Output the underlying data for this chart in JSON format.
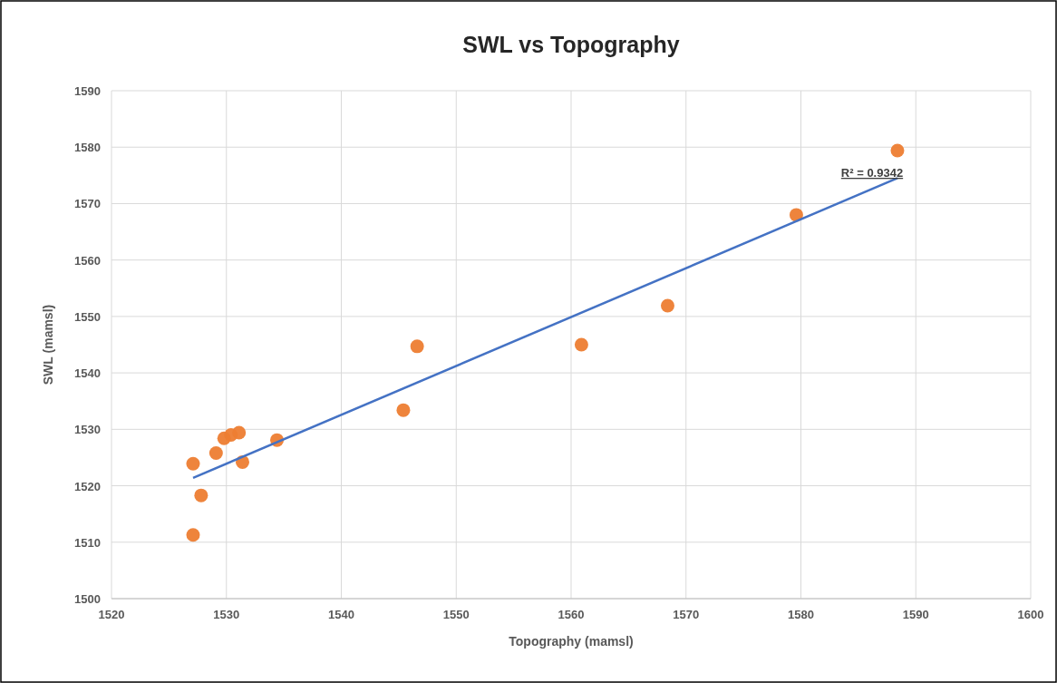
{
  "chart_data": {
    "type": "scatter",
    "title": "SWL vs Topography",
    "xlabel": "Topography (mamsl)",
    "ylabel": "SWL (mamsl)",
    "xlim": [
      1520,
      1600
    ],
    "xticks": [
      1520,
      1530,
      1540,
      1550,
      1560,
      1570,
      1580,
      1590,
      1600
    ],
    "ylim": [
      1500,
      1590
    ],
    "yticks": [
      1500,
      1510,
      1520,
      1530,
      1540,
      1550,
      1560,
      1570,
      1580,
      1590
    ],
    "grid": true,
    "series": [
      {
        "marker": "circle",
        "color": "#ed7d31",
        "x": [
          1527.1,
          1527.8,
          1527.1,
          1529.1,
          1529.8,
          1530.4,
          1531.1,
          1531.4,
          1534.4,
          1545.4,
          1546.6,
          1560.9,
          1568.4,
          1579.6,
          1588.4
        ],
        "values": [
          1523.9,
          1518.3,
          1511.3,
          1525.8,
          1528.4,
          1529.0,
          1529.4,
          1524.2,
          1528.1,
          1533.4,
          1544.7,
          1545.0,
          1551.9,
          1568.0,
          1579.4
        ]
      },
      {
        "type": "line",
        "color": "#4472c4",
        "x": [
          1527.1,
          1588.4
        ],
        "values": [
          1521.4,
          1574.5
        ]
      }
    ],
    "annotations": [
      "R² = 0.9342"
    ]
  }
}
